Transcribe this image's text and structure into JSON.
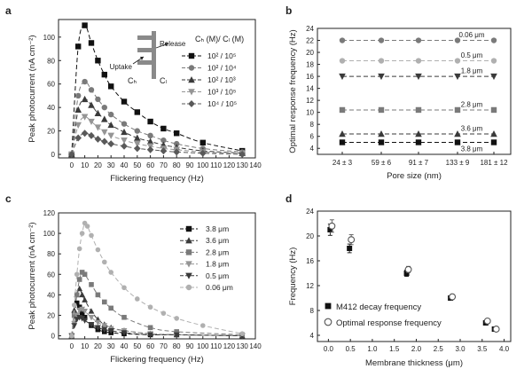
{
  "colors": {
    "axis": "#222222",
    "s_black": "#111111",
    "s_dark": "#3a3a3a",
    "s_mid": "#595959",
    "s_gray": "#7a7a7a",
    "s_light": "#959595",
    "s_pale": "#b0b0b0"
  },
  "chart_data": [
    {
      "panel": "a",
      "type": "line",
      "title": "",
      "xlabel": "Flickering frequency  (Hz)",
      "ylabel": "Peak photocurrent  (nA cm⁻²)",
      "xlim": [
        -10,
        140
      ],
      "ylim": [
        -3,
        115
      ],
      "xticks": [
        0,
        10,
        20,
        30,
        40,
        50,
        60,
        70,
        80,
        90,
        100,
        110,
        120,
        130,
        140
      ],
      "yticks": [
        0,
        20,
        40,
        60,
        80,
        100
      ],
      "legend_title": "Cₕ (M)/ Cₗ (M)",
      "inset_labels": {
        "release": "Release",
        "uptake": "Uptake",
        "ch": "Cₕ",
        "cl": "Cₗ"
      },
      "series": [
        {
          "name": "10² / 10⁵",
          "marker": "square",
          "color": "#111111",
          "x": [
            0,
            5,
            10,
            15,
            20,
            25,
            30,
            40,
            50,
            60,
            70,
            80,
            100,
            130
          ],
          "y": [
            0,
            92,
            110,
            95,
            80,
            68,
            58,
            45,
            36,
            28,
            22,
            18,
            10,
            3
          ]
        },
        {
          "name": "10² / 10⁴",
          "marker": "circle",
          "color": "#7a7a7a",
          "x": [
            0,
            5,
            10,
            15,
            20,
            25,
            30,
            40,
            50,
            60,
            70,
            80,
            100,
            130
          ],
          "y": [
            0,
            50,
            62,
            55,
            47,
            40,
            34,
            26,
            20,
            16,
            12,
            9,
            5,
            2
          ]
        },
        {
          "name": "10² / 10³",
          "marker": "triangle-up",
          "color": "#3a3a3a",
          "x": [
            0,
            5,
            10,
            15,
            20,
            25,
            30,
            40,
            50,
            60,
            70,
            80,
            100,
            130
          ],
          "y": [
            0,
            38,
            47,
            42,
            35,
            30,
            25,
            19,
            14,
            11,
            8,
            6,
            3,
            1
          ]
        },
        {
          "name": "10³ / 10⁵",
          "marker": "triangle-down",
          "color": "#959595",
          "x": [
            0,
            5,
            10,
            15,
            20,
            25,
            30,
            40,
            50,
            60,
            70,
            80,
            100,
            130
          ],
          "y": [
            0,
            25,
            32,
            28,
            23,
            19,
            16,
            12,
            9,
            7,
            5,
            4,
            2,
            1
          ]
        },
        {
          "name": "10⁴ / 10⁵",
          "marker": "diamond",
          "color": "#595959",
          "x": [
            0,
            5,
            10,
            15,
            20,
            25,
            30,
            40,
            50,
            60,
            70,
            80,
            100,
            130
          ],
          "y": [
            0,
            14,
            18,
            16,
            13,
            11,
            9,
            7,
            5,
            4,
            3,
            2,
            1,
            0
          ]
        }
      ]
    },
    {
      "panel": "b",
      "type": "line",
      "title": "",
      "xlabel": "Pore size  (nm)",
      "ylabel": "Optimal response frequency  (Hz)",
      "categories": [
        "24 ± 3",
        "59 ± 6",
        "91 ± 7",
        "133 ± 9",
        "181 ± 12"
      ],
      "ylim": [
        3,
        24
      ],
      "yticks": [
        4,
        6,
        8,
        10,
        12,
        14,
        16,
        18,
        20,
        22,
        24
      ],
      "series": [
        {
          "name": "0.06 μm",
          "marker": "circle",
          "color": "#7a7a7a",
          "values": [
            22,
            22,
            22,
            22,
            22
          ]
        },
        {
          "name": "0.5 μm",
          "marker": "circle",
          "color": "#b0b0b0",
          "values": [
            18.6,
            18.6,
            18.6,
            18.6,
            18.6
          ]
        },
        {
          "name": "1.8 μm",
          "marker": "triangle-down",
          "color": "#3a3a3a",
          "values": [
            16,
            16,
            16,
            16,
            16
          ]
        },
        {
          "name": "2.8 μm",
          "marker": "square",
          "color": "#7a7a7a",
          "values": [
            10.4,
            10.4,
            10.4,
            10.4,
            10.4
          ]
        },
        {
          "name": "3.6 μm",
          "marker": "triangle-up",
          "color": "#3a3a3a",
          "values": [
            6.4,
            6.4,
            6.4,
            6.4,
            6.4
          ]
        },
        {
          "name": "3.8 μm",
          "marker": "square",
          "color": "#111111",
          "values": [
            5,
            5,
            5,
            5,
            5
          ]
        }
      ]
    },
    {
      "panel": "c",
      "type": "line",
      "title": "",
      "xlabel": "Flickering frequency  (Hz)",
      "ylabel": "Peak photocurrent  (nA cm⁻²)",
      "xlim": [
        -10,
        140
      ],
      "ylim": [
        -3,
        120
      ],
      "xticks": [
        0,
        10,
        20,
        30,
        40,
        50,
        60,
        70,
        80,
        90,
        100,
        110,
        120,
        130,
        140
      ],
      "yticks": [
        0,
        20,
        40,
        60,
        80,
        100,
        120
      ],
      "series": [
        {
          "name": "3.8 μm",
          "marker": "square",
          "color": "#111111",
          "x": [
            0,
            2,
            4,
            6,
            8,
            10,
            15,
            20,
            25,
            30,
            40,
            60,
            80,
            130
          ],
          "y": [
            0,
            20,
            32,
            28,
            22,
            18,
            10,
            6,
            4,
            3,
            2,
            1,
            1,
            0
          ]
        },
        {
          "name": "3.6 μm",
          "marker": "triangle-up",
          "color": "#3a3a3a",
          "x": [
            0,
            2,
            4,
            6,
            8,
            10,
            15,
            20,
            25,
            30,
            40,
            60,
            80,
            130
          ],
          "y": [
            0,
            25,
            40,
            46,
            40,
            35,
            24,
            16,
            11,
            8,
            5,
            2,
            1,
            0
          ]
        },
        {
          "name": "2.8 μm",
          "marker": "square",
          "color": "#7a7a7a",
          "x": [
            0,
            2,
            4,
            6,
            8,
            10,
            15,
            20,
            25,
            30,
            40,
            60,
            80,
            130
          ],
          "y": [
            0,
            20,
            40,
            55,
            62,
            60,
            50,
            40,
            33,
            27,
            18,
            8,
            4,
            1
          ]
        },
        {
          "name": "1.8 μm",
          "marker": "triangle-down",
          "color": "#959595",
          "x": [
            0,
            2,
            4,
            6,
            8,
            10,
            15,
            20,
            25,
            30,
            40,
            60,
            80,
            130
          ],
          "y": [
            0,
            12,
            20,
            25,
            26,
            24,
            18,
            13,
            10,
            7,
            5,
            2,
            1,
            0
          ]
        },
        {
          "name": "0.5 μm",
          "marker": "triangle-down",
          "color": "#3a3a3a",
          "x": [
            0,
            2,
            4,
            6,
            8,
            10,
            15,
            20,
            25,
            30,
            40,
            60,
            80,
            130
          ],
          "y": [
            0,
            10,
            16,
            18,
            17,
            15,
            11,
            8,
            6,
            5,
            3,
            1,
            1,
            0
          ]
        },
        {
          "name": "0.06 μm",
          "marker": "circle",
          "color": "#b0b0b0",
          "x": [
            0,
            2,
            4,
            6,
            8,
            10,
            12,
            15,
            20,
            25,
            30,
            40,
            50,
            60,
            70,
            80,
            100,
            130
          ],
          "y": [
            0,
            30,
            60,
            85,
            100,
            110,
            107,
            98,
            84,
            72,
            62,
            47,
            36,
            28,
            22,
            17,
            10,
            2
          ]
        }
      ]
    },
    {
      "panel": "d",
      "type": "scatter",
      "title": "",
      "xlabel": "Membrane thickness  (μm)",
      "ylabel": "Frequency (Hz)",
      "xlim": [
        -0.25,
        4.15
      ],
      "ylim": [
        3,
        24
      ],
      "xticks": [
        0.0,
        0.5,
        1.0,
        1.5,
        2.0,
        2.5,
        3.0,
        3.5,
        4.0
      ],
      "xtick_labels": [
        "0.0",
        "0.5",
        "1.0",
        "1.5",
        "2.0",
        "2.5",
        "3.0",
        "3.5",
        "4.0"
      ],
      "yticks": [
        4,
        8,
        12,
        16,
        20,
        24
      ],
      "series": [
        {
          "name": "M412 decay frequency",
          "marker": "square",
          "color": "#111111",
          "x": [
            0.06,
            0.5,
            1.8,
            2.8,
            3.6,
            3.8
          ],
          "y": [
            21.0,
            18.0,
            14.0,
            10.0,
            6.0,
            5.0
          ],
          "err": [
            0.9,
            0.7,
            0.5,
            0.3,
            0.3,
            0.2
          ]
        },
        {
          "name": "Optimal response frequency",
          "marker": "circle-open",
          "color": "#555555",
          "x": [
            0.06,
            0.5,
            1.8,
            2.8,
            3.6,
            3.8
          ],
          "y": [
            21.6,
            19.4,
            14.6,
            10.2,
            6.3,
            5.0
          ],
          "err": [
            1.0,
            0.8,
            0.5,
            0.3,
            0.3,
            0.2
          ]
        }
      ]
    }
  ]
}
